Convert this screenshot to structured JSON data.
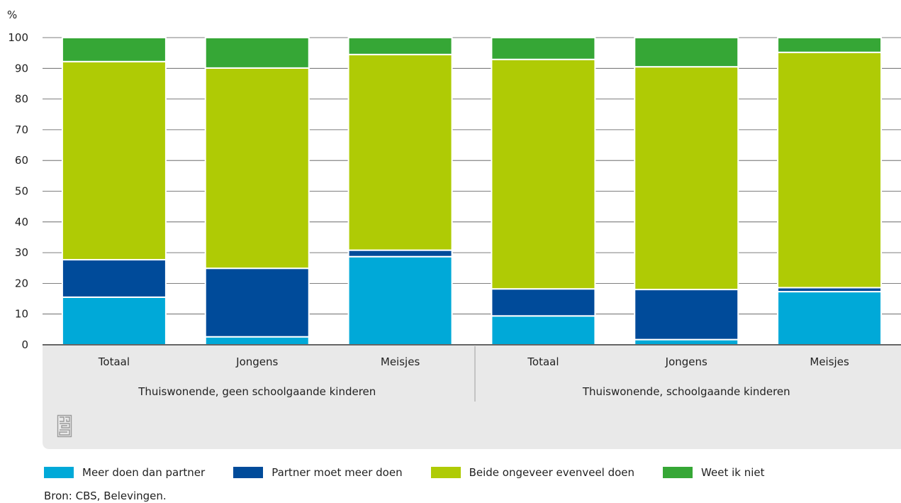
{
  "chart_data": {
    "type": "bar",
    "stacked": true,
    "y_unit_label": "%",
    "ylim": [
      0,
      100
    ],
    "yticks": [
      0,
      10,
      20,
      30,
      40,
      50,
      60,
      70,
      80,
      90,
      100
    ],
    "categories": [
      "Totaal",
      "Jongens",
      "Meisjes",
      "Totaal",
      "Jongens",
      "Meisjes"
    ],
    "groups": [
      {
        "label": "Thuiswonende, geen schoolgaande kinderen",
        "span": [
          0,
          2
        ]
      },
      {
        "label": "Thuiswonende, schoolgaande kinderen",
        "span": [
          3,
          5
        ]
      }
    ],
    "series": [
      {
        "name": "Meer doen dan partner",
        "color": "#00a9d8",
        "values": [
          15.5,
          2.6,
          28.7,
          9.4,
          1.7,
          17.3
        ]
      },
      {
        "name": "Partner moet meer doen",
        "color": "#004b9a",
        "values": [
          12.2,
          22.3,
          2.1,
          8.8,
          16.3,
          1.3
        ]
      },
      {
        "name": "Beide ongeveer evenveel doen",
        "color": "#afcb05",
        "values": [
          64.5,
          65.2,
          63.7,
          74.7,
          72.5,
          76.6
        ]
      },
      {
        "name": "Weet ik niet",
        "color": "#36a736",
        "values": [
          7.8,
          9.9,
          5.5,
          7.1,
          9.5,
          4.8
        ]
      }
    ],
    "grid": true,
    "legend_position": "bottom"
  },
  "source": "Bron: CBS, Belevingen."
}
